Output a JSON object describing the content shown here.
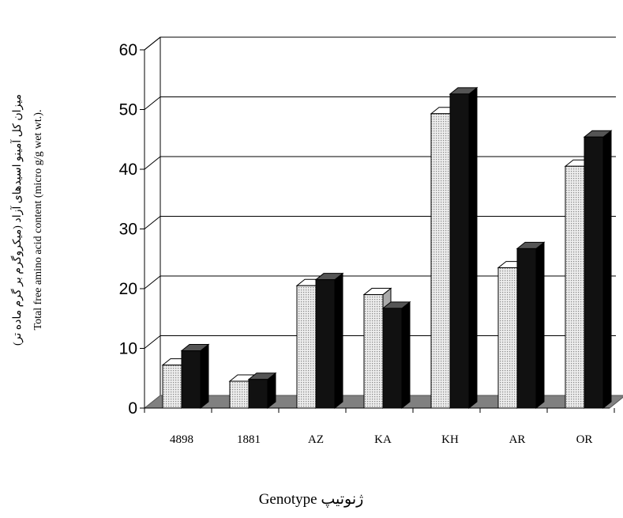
{
  "chart_data": {
    "type": "bar",
    "categories": [
      "4898",
      "1881",
      "AZ",
      "KA",
      "KH",
      "AR",
      "OR"
    ],
    "series": [
      {
        "values": [
          7.2,
          4.5,
          20.5,
          19.0,
          49.3,
          23.5,
          40.5
        ],
        "color": "#d8d8d8",
        "pattern": "dotted"
      },
      {
        "values": [
          9.6,
          4.8,
          21.5,
          16.7,
          52.6,
          26.7,
          45.4
        ],
        "color": "#111111"
      }
    ],
    "xlabel": "Genotype ژنوتیپ",
    "ylabel_lines": [
      "میزان کل آمینو اسیدهای آزاد (میکروگرم بر گرم ماده تر)",
      "Total free amino acid content (micro g/g wet wt.)."
    ],
    "ylim": [
      0,
      60
    ],
    "yticks": [
      0,
      10,
      20,
      30,
      40,
      50,
      60
    ],
    "grid": true,
    "legend": "none"
  }
}
